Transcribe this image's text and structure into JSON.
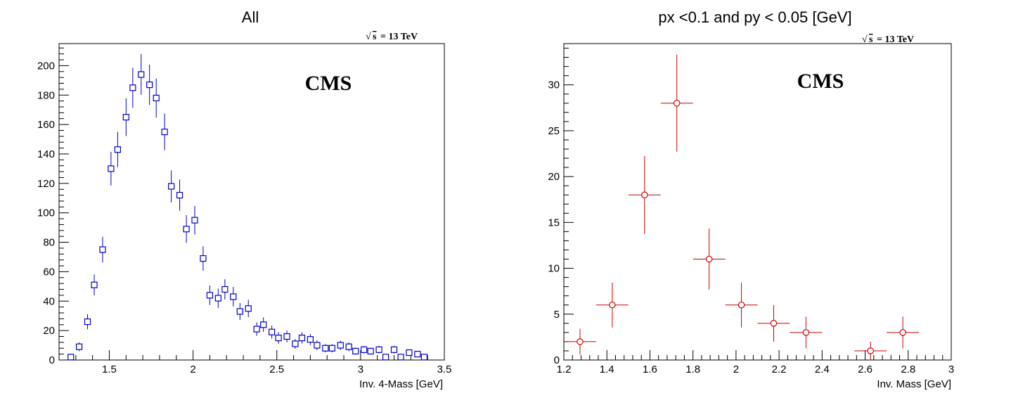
{
  "chart_data": [
    {
      "type": "scatter",
      "title": "All",
      "xlabel": "Inv. 4-Mass [GeV]",
      "ylabel": "",
      "xlim": [
        1.2,
        3.5
      ],
      "ylim": [
        0,
        215
      ],
      "xticks": [
        1.5,
        2,
        2.5,
        3,
        3.5
      ],
      "xtick_labels": [
        "1.5",
        "2",
        "2.5",
        "3",
        "3.5"
      ],
      "yticks": [
        0,
        20,
        40,
        60,
        80,
        100,
        120,
        140,
        160,
        180,
        200
      ],
      "ytick_labels": [
        "0",
        "20",
        "40",
        "60",
        "80",
        "100",
        "120",
        "140",
        "160",
        "180",
        "200"
      ],
      "annotation": "CMS",
      "energy_label": "= 13 TeV",
      "energy_symbol": "s",
      "marker": "open-square",
      "color": "#0000cc",
      "x": [
        1.27,
        1.32,
        1.37,
        1.41,
        1.46,
        1.51,
        1.55,
        1.6,
        1.64,
        1.69,
        1.74,
        1.78,
        1.83,
        1.87,
        1.92,
        1.96,
        2.01,
        2.06,
        2.1,
        2.15,
        2.19,
        2.24,
        2.28,
        2.33,
        2.38,
        2.42,
        2.47,
        2.51,
        2.56,
        2.61,
        2.65,
        2.7,
        2.74,
        2.79,
        2.83,
        2.88,
        2.93,
        2.97,
        3.02,
        3.06,
        3.11,
        3.15,
        3.2,
        3.24,
        3.29,
        3.34,
        3.38
      ],
      "y": [
        2,
        9,
        26,
        51,
        75,
        130,
        143,
        165,
        185,
        194,
        187,
        178,
        155,
        118,
        112,
        89,
        95,
        69,
        44,
        42,
        48,
        43,
        33,
        35,
        21,
        24,
        19,
        15,
        16,
        11,
        15,
        14,
        10,
        8,
        8,
        10,
        9,
        6,
        7,
        6,
        7,
        2,
        7,
        2,
        5,
        4,
        2
      ],
      "y_err": [
        1.4,
        3.0,
        5.1,
        7.1,
        8.7,
        11.4,
        12.0,
        12.8,
        13.6,
        13.9,
        13.7,
        13.3,
        12.4,
        10.9,
        10.6,
        9.4,
        9.7,
        8.3,
        6.6,
        6.5,
        6.9,
        6.6,
        5.7,
        5.9,
        4.6,
        4.9,
        4.4,
        3.9,
        4.0,
        3.3,
        3.9,
        3.7,
        3.2,
        2.8,
        2.8,
        3.2,
        3.0,
        2.4,
        2.6,
        2.4,
        2.6,
        1.4,
        2.6,
        1.4,
        2.2,
        2.0,
        1.4
      ]
    },
    {
      "type": "scatter",
      "title": "px <0.1 and py < 0.05 [GeV]",
      "xlabel": "Inv. Mass [GeV]",
      "ylabel": "",
      "xlim": [
        1.2,
        3.0
      ],
      "ylim": [
        0,
        34.5
      ],
      "xticks": [
        1.2,
        1.4,
        1.6,
        1.8,
        2,
        2.2,
        2.4,
        2.6,
        2.8,
        3
      ],
      "xtick_labels": [
        "1.2",
        "1.4",
        "1.6",
        "1.8",
        "2",
        "2.2",
        "2.4",
        "2.6",
        "2.8",
        "3"
      ],
      "yticks": [
        0,
        5,
        10,
        15,
        20,
        25,
        30
      ],
      "ytick_labels": [
        "0",
        "5",
        "10",
        "15",
        "20",
        "25",
        "30"
      ],
      "annotation": "CMS",
      "energy_label": "= 13 TeV",
      "energy_symbol": "s",
      "marker": "open-circle",
      "color": "#cc0000",
      "x": [
        1.275,
        1.425,
        1.575,
        1.725,
        1.875,
        2.025,
        2.175,
        2.325,
        2.625,
        2.775
      ],
      "x_err": 0.075,
      "y": [
        2,
        6,
        18,
        28,
        11,
        6,
        4,
        3,
        1,
        3
      ],
      "y_err": [
        1.4,
        2.45,
        4.24,
        5.29,
        3.32,
        2.45,
        2.0,
        1.73,
        1.0,
        1.73
      ]
    }
  ]
}
